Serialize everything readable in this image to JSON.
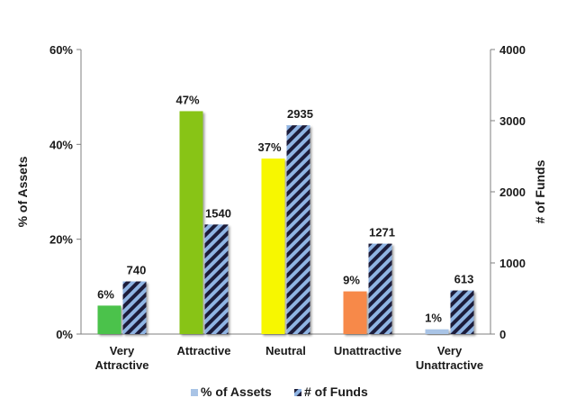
{
  "chart_data": {
    "type": "bar",
    "categories": [
      [
        "Very",
        "Attractive"
      ],
      [
        "Attractive"
      ],
      [
        "Neutral"
      ],
      [
        "Unattractive"
      ],
      [
        "Very",
        "Unattractive"
      ]
    ],
    "series": [
      {
        "name": "% of Assets",
        "axis": "left",
        "values": [
          6,
          47,
          37,
          9,
          1
        ],
        "labels": [
          "6%",
          "47%",
          "37%",
          "9%",
          "1%"
        ],
        "colors": [
          "#4cc24c",
          "#88c417",
          "#f7f700",
          "#f7894a",
          "#a9c4e6"
        ]
      },
      {
        "name": "# of Funds",
        "axis": "right",
        "values": [
          740,
          1540,
          2935,
          1271,
          613
        ],
        "labels": [
          "740",
          "1540",
          "2935",
          "1271",
          "613"
        ],
        "fill": "hatched",
        "colors": [
          "#8fb4e3",
          "#1f1f3a"
        ]
      }
    ],
    "ylabel_left": "% of Assets",
    "ylabel_right": "# of Funds",
    "ylim_left": [
      0,
      60
    ],
    "ylim_right": [
      0,
      4000
    ],
    "yticks_left": [
      "0%",
      "20%",
      "40%",
      "60%"
    ],
    "yticks_right": [
      "0",
      "1000",
      "2000",
      "3000",
      "4000"
    ],
    "grid": false,
    "legend_position": "bottom"
  }
}
